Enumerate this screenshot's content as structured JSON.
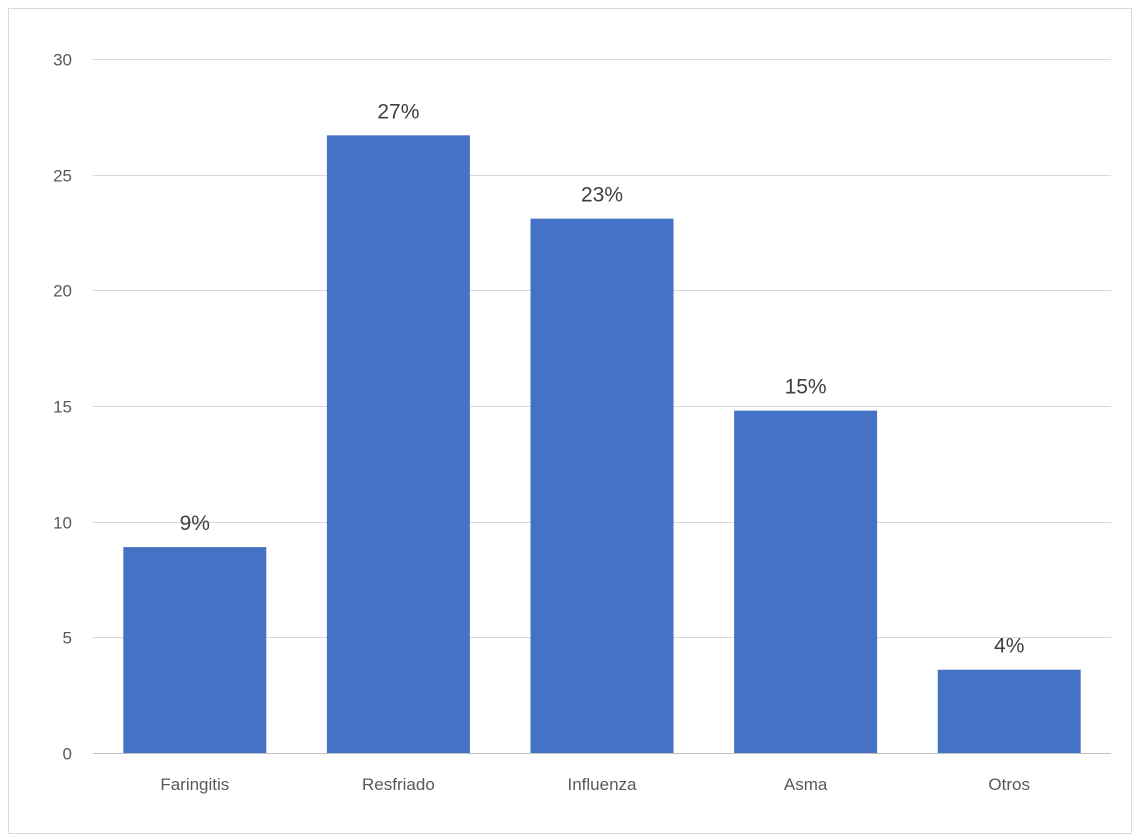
{
  "chart_data": {
    "type": "bar",
    "title": "",
    "xlabel": "",
    "ylabel": "",
    "categories": [
      "Faringitis",
      "Resfriado",
      "Influenza",
      "Asma",
      "Otros"
    ],
    "values": [
      8.9,
      26.7,
      23.1,
      14.8,
      3.6
    ],
    "data_labels": [
      "9%",
      "27%",
      "23%",
      "15%",
      "4%"
    ],
    "ylim": [
      0,
      30
    ],
    "yticks": [
      "0",
      "5",
      "10",
      "15",
      "20",
      "25",
      "30"
    ],
    "ytick_values": [
      0,
      5,
      10,
      15,
      20,
      25,
      30
    ],
    "grid": true,
    "legend": "none",
    "bar_color": "#4472C4"
  }
}
